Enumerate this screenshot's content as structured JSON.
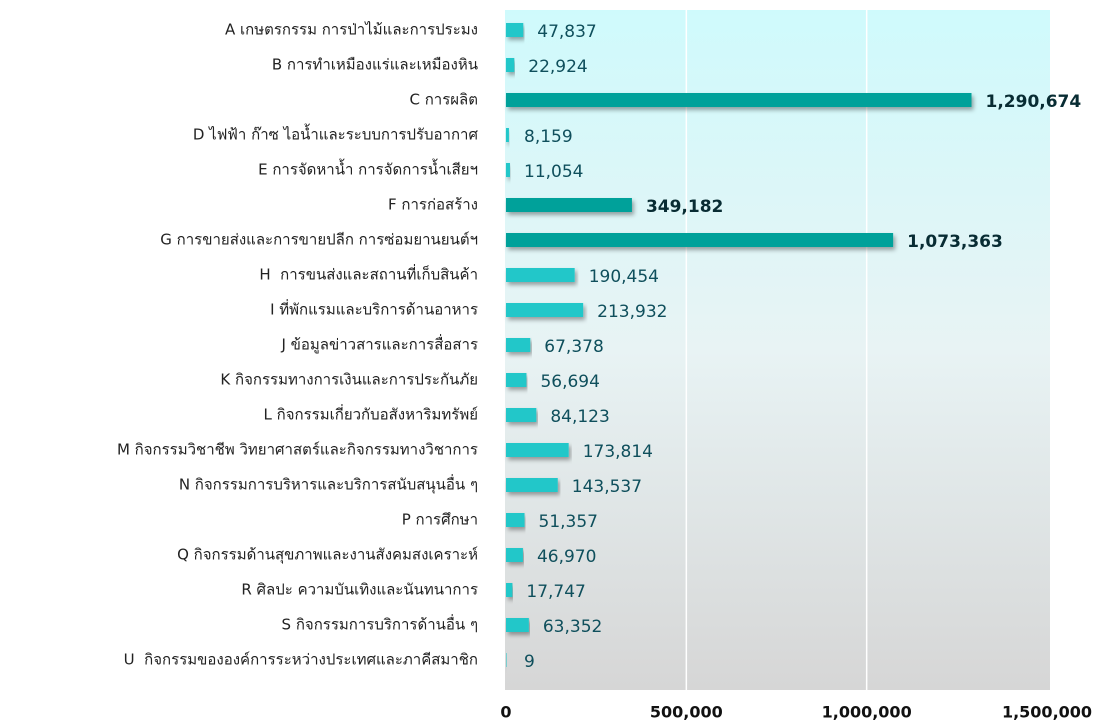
{
  "chart_data": {
    "type": "hbar",
    "categories": [
      "A เกษตรกรรม การป่าไม้และการประมง",
      "B การทำเหมืองแร่และเหมืองหิน",
      "C การผลิต",
      "D ไฟฟ้า ก๊าซ ไอน้ำและระบบการปรับอากาศ",
      "E การจัดหาน้ำ การจัดการน้ำเสียฯ",
      "F การก่อสร้าง",
      "G การขายส่งและการขายปลีก การซ่อมยานยนต์ฯ",
      "H  การขนส่งและสถานที่เก็บสินค้า",
      "I ที่พักแรมและบริการด้านอาหาร",
      "J ข้อมูลข่าวสารและการสื่อสาร",
      "K กิจกรรมทางการเงินและการประกันภัย",
      "L กิจกรรมเกี่ยวกับอสังหาริมทรัพย์",
      "M กิจกรรมวิชาชีพ วิทยาศาสตร์และกิจกรรมทางวิชาการ",
      "N กิจกรรมการบริหารและบริการสนับสนุนอื่น ๆ",
      "P การศึกษา",
      "Q กิจกรรมด้านสุขภาพและงานสังคมสงเคราะห์",
      "R ศิลปะ ความบันเทิงและนันทนาการ",
      "S กิจกรรมการบริการด้านอื่น ๆ",
      "U  กิจกรรมขององค์การระหว่างประเทศและภาคีสมาชิก"
    ],
    "values": [
      47837,
      22924,
      1290674,
      8159,
      11054,
      349182,
      1073363,
      190454,
      213932,
      67378,
      56694,
      84123,
      173814,
      143537,
      51357,
      46970,
      17747,
      63352,
      9
    ],
    "value_labels": [
      "47,837",
      "22,924",
      "1,290,674",
      "8,159",
      "11,054",
      "349,182",
      "1,073,363",
      "190,454",
      "213,932",
      "67,378",
      "56,694",
      "84,123",
      "173,814",
      "143,537",
      "51,357",
      "46,970",
      "17,747",
      "63,352",
      "9"
    ],
    "color": "#22c7c9",
    "highlight_color": "#00a19a",
    "highlight": [
      2,
      5,
      6
    ],
    "xlim": [
      0,
      1500000
    ],
    "xticks": [
      0,
      {
        "value": 500000,
        "label": "500,000"
      },
      {
        "value": 1000000,
        "label": "1,000,000"
      },
      {
        "value": 1500000,
        "label": "1,500,000"
      }
    ],
    "grid": true
  }
}
